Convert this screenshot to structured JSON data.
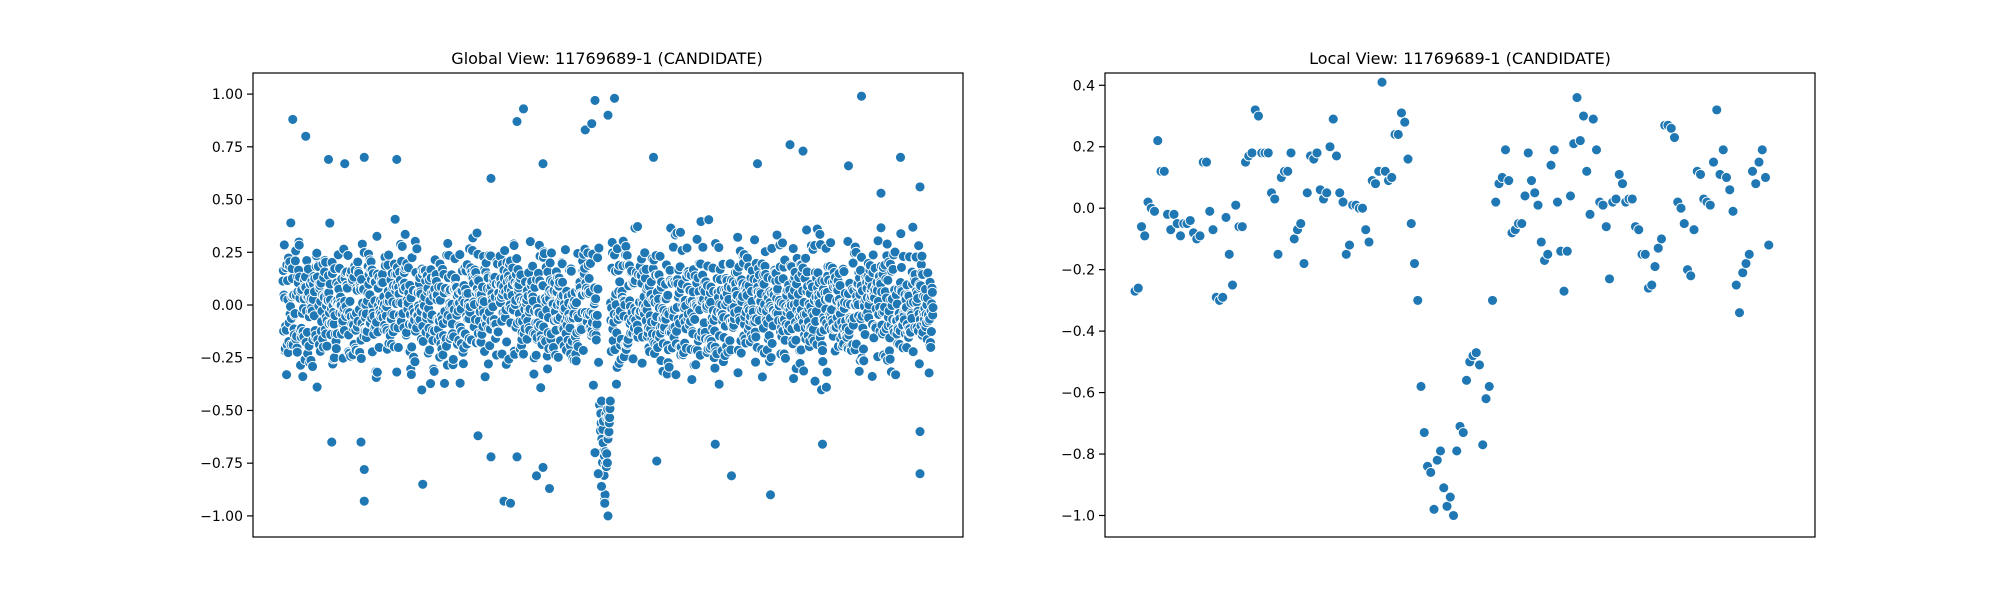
{
  "colors": {
    "marker": "#1f77b4",
    "marker_edge": "#ffffff",
    "frame": "#000000",
    "background": "#ffffff"
  },
  "chart_data": [
    {
      "type": "scatter",
      "title": "Global View: 11769689-1 (CANDIDATE)",
      "xlabel": "",
      "ylabel": "",
      "grid": false,
      "x_ticks_visible": false,
      "xlim": [
        0,
        2000
      ],
      "ylim": [
        -1.1,
        1.1
      ],
      "yticks": [
        -1.0,
        -0.75,
        -0.5,
        -0.25,
        0.0,
        0.25,
        0.5,
        0.75,
        1.0
      ],
      "ytick_labels": [
        "−1.00",
        "−0.75",
        "−0.50",
        "−0.25",
        "0.00",
        "0.25",
        "0.50",
        "0.75",
        "1.00"
      ],
      "n_points": 2001,
      "band": {
        "low": -0.38,
        "high": 0.38
      },
      "outliers": [
        [
          30,
          0.88
        ],
        [
          70,
          0.8
        ],
        [
          140,
          0.69
        ],
        [
          190,
          0.67
        ],
        [
          250,
          0.7
        ],
        [
          350,
          0.69
        ],
        [
          640,
          0.6
        ],
        [
          720,
          0.87
        ],
        [
          740,
          0.93
        ],
        [
          800,
          0.67
        ],
        [
          930,
          0.83
        ],
        [
          950,
          0.86
        ],
        [
          960,
          0.97
        ],
        [
          1000,
          0.9
        ],
        [
          1020,
          0.98
        ],
        [
          1140,
          0.7
        ],
        [
          1460,
          0.67
        ],
        [
          1560,
          0.76
        ],
        [
          1600,
          0.73
        ],
        [
          1740,
          0.66
        ],
        [
          1780,
          0.99
        ],
        [
          1840,
          0.53
        ],
        [
          1900,
          0.7
        ],
        [
          1960,
          0.56
        ],
        [
          150,
          -0.65
        ],
        [
          240,
          -0.65
        ],
        [
          250,
          -0.78
        ],
        [
          250,
          -0.93
        ],
        [
          430,
          -0.85
        ],
        [
          600,
          -0.62
        ],
        [
          640,
          -0.72
        ],
        [
          680,
          -0.93
        ],
        [
          700,
          -0.94
        ],
        [
          720,
          -0.72
        ],
        [
          780,
          -0.81
        ],
        [
          800,
          -0.77
        ],
        [
          820,
          -0.87
        ],
        [
          960,
          -0.7
        ],
        [
          970,
          -0.8
        ],
        [
          980,
          -0.86
        ],
        [
          990,
          -0.94
        ],
        [
          1000,
          -1.0
        ],
        [
          1150,
          -0.74
        ],
        [
          1330,
          -0.66
        ],
        [
          1380,
          -0.81
        ],
        [
          1500,
          -0.9
        ],
        [
          1660,
          -0.66
        ],
        [
          1960,
          -0.8
        ],
        [
          1960,
          -0.6
        ]
      ],
      "dip": {
        "center": 990,
        "width": 18,
        "min": -1.0
      }
    },
    {
      "type": "scatter",
      "title": "Local View: 11769689-1 (CANDIDATE)",
      "xlabel": "",
      "ylabel": "",
      "grid": false,
      "x_ticks_visible": false,
      "xlim": [
        0,
        200
      ],
      "ylim": [
        -1.07,
        0.44
      ],
      "yticks": [
        -1.0,
        -0.8,
        -0.6,
        -0.4,
        -0.2,
        0.0,
        0.2,
        0.4
      ],
      "ytick_labels": [
        "−1.0",
        "−0.8",
        "−0.6",
        "−0.4",
        "−0.2",
        "0.0",
        "0.2",
        "0.4"
      ],
      "points": [
        [
          0,
          -0.27
        ],
        [
          1,
          -0.26
        ],
        [
          2,
          -0.06
        ],
        [
          3,
          -0.09
        ],
        [
          4,
          0.02
        ],
        [
          5,
          0.0
        ],
        [
          6,
          -0.01
        ],
        [
          7,
          0.22
        ],
        [
          8,
          0.12
        ],
        [
          9,
          0.12
        ],
        [
          10,
          -0.02
        ],
        [
          11,
          -0.07
        ],
        [
          12,
          -0.02
        ],
        [
          13,
          -0.05
        ],
        [
          14,
          -0.09
        ],
        [
          15,
          -0.05
        ],
        [
          16,
          -0.05
        ],
        [
          17,
          -0.04
        ],
        [
          18,
          -0.08
        ],
        [
          19,
          -0.1
        ],
        [
          20,
          -0.09
        ],
        [
          21,
          0.15
        ],
        [
          22,
          0.15
        ],
        [
          23,
          -0.01
        ],
        [
          24,
          -0.07
        ],
        [
          25,
          -0.29
        ],
        [
          26,
          -0.3
        ],
        [
          27,
          -0.29
        ],
        [
          28,
          -0.03
        ],
        [
          29,
          -0.15
        ],
        [
          30,
          -0.25
        ],
        [
          31,
          0.01
        ],
        [
          32,
          -0.06
        ],
        [
          33,
          -0.06
        ],
        [
          34,
          0.15
        ],
        [
          35,
          0.17
        ],
        [
          36,
          0.18
        ],
        [
          37,
          0.32
        ],
        [
          38,
          0.3
        ],
        [
          39,
          0.18
        ],
        [
          40,
          0.18
        ],
        [
          41,
          0.18
        ],
        [
          42,
          0.05
        ],
        [
          43,
          0.03
        ],
        [
          44,
          -0.15
        ],
        [
          45,
          0.1
        ],
        [
          46,
          0.12
        ],
        [
          47,
          0.12
        ],
        [
          48,
          0.18
        ],
        [
          49,
          -0.1
        ],
        [
          50,
          -0.07
        ],
        [
          51,
          -0.05
        ],
        [
          52,
          -0.18
        ],
        [
          53,
          0.05
        ],
        [
          54,
          0.17
        ],
        [
          55,
          0.16
        ],
        [
          56,
          0.18
        ],
        [
          57,
          0.06
        ],
        [
          58,
          0.03
        ],
        [
          59,
          0.05
        ],
        [
          60,
          0.2
        ],
        [
          61,
          0.29
        ],
        [
          62,
          0.17
        ],
        [
          63,
          0.05
        ],
        [
          64,
          0.02
        ],
        [
          65,
          -0.15
        ],
        [
          66,
          -0.12
        ],
        [
          67,
          0.01
        ],
        [
          68,
          0.01
        ],
        [
          69,
          0.0
        ],
        [
          70,
          0.0
        ],
        [
          71,
          -0.07
        ],
        [
          72,
          -0.11
        ],
        [
          73,
          0.09
        ],
        [
          74,
          0.08
        ],
        [
          75,
          0.12
        ],
        [
          76,
          0.41
        ],
        [
          77,
          0.12
        ],
        [
          78,
          0.09
        ],
        [
          79,
          0.1
        ],
        [
          80,
          0.24
        ],
        [
          81,
          0.24
        ],
        [
          82,
          0.31
        ],
        [
          83,
          0.28
        ],
        [
          84,
          0.16
        ],
        [
          85,
          -0.05
        ],
        [
          86,
          -0.18
        ],
        [
          87,
          -0.3
        ],
        [
          88,
          -0.58
        ],
        [
          89,
          -0.73
        ],
        [
          90,
          -0.84
        ],
        [
          91,
          -0.86
        ],
        [
          92,
          -0.98
        ],
        [
          93,
          -0.82
        ],
        [
          94,
          -0.79
        ],
        [
          95,
          -0.91
        ],
        [
          96,
          -0.97
        ],
        [
          97,
          -0.94
        ],
        [
          98,
          -1.0
        ],
        [
          99,
          -0.79
        ],
        [
          100,
          -0.71
        ],
        [
          101,
          -0.73
        ],
        [
          102,
          -0.56
        ],
        [
          103,
          -0.5
        ],
        [
          104,
          -0.48
        ],
        [
          105,
          -0.47
        ],
        [
          106,
          -0.51
        ],
        [
          107,
          -0.77
        ],
        [
          108,
          -0.62
        ],
        [
          109,
          -0.58
        ],
        [
          110,
          -0.3
        ],
        [
          111,
          0.02
        ],
        [
          112,
          0.08
        ],
        [
          113,
          0.1
        ],
        [
          114,
          0.19
        ],
        [
          115,
          0.09
        ],
        [
          116,
          -0.08
        ],
        [
          117,
          -0.07
        ],
        [
          118,
          -0.05
        ],
        [
          119,
          -0.05
        ],
        [
          120,
          0.04
        ],
        [
          121,
          0.18
        ],
        [
          122,
          0.09
        ],
        [
          123,
          0.05
        ],
        [
          124,
          0.01
        ],
        [
          125,
          -0.11
        ],
        [
          126,
          -0.17
        ],
        [
          127,
          -0.15
        ],
        [
          128,
          0.14
        ],
        [
          129,
          0.19
        ],
        [
          130,
          0.02
        ],
        [
          131,
          -0.14
        ],
        [
          132,
          -0.27
        ],
        [
          133,
          -0.14
        ],
        [
          134,
          0.04
        ],
        [
          135,
          0.21
        ],
        [
          136,
          0.36
        ],
        [
          137,
          0.22
        ],
        [
          138,
          0.3
        ],
        [
          139,
          0.12
        ],
        [
          140,
          -0.02
        ],
        [
          141,
          0.29
        ],
        [
          142,
          0.19
        ],
        [
          143,
          0.02
        ],
        [
          144,
          0.01
        ],
        [
          145,
          -0.06
        ],
        [
          146,
          -0.23
        ],
        [
          147,
          0.02
        ],
        [
          148,
          0.03
        ],
        [
          149,
          0.11
        ],
        [
          150,
          0.08
        ],
        [
          151,
          0.02
        ],
        [
          152,
          0.03
        ],
        [
          153,
          0.03
        ],
        [
          154,
          -0.06
        ],
        [
          155,
          -0.07
        ],
        [
          156,
          -0.15
        ],
        [
          157,
          -0.15
        ],
        [
          158,
          -0.26
        ],
        [
          159,
          -0.25
        ],
        [
          160,
          -0.19
        ],
        [
          161,
          -0.13
        ],
        [
          162,
          -0.1
        ],
        [
          163,
          0.27
        ],
        [
          164,
          0.27
        ],
        [
          165,
          0.26
        ],
        [
          166,
          0.23
        ],
        [
          167,
          0.02
        ],
        [
          168,
          0.0
        ],
        [
          169,
          -0.05
        ],
        [
          170,
          -0.2
        ],
        [
          171,
          -0.22
        ],
        [
          172,
          -0.07
        ],
        [
          173,
          0.12
        ],
        [
          174,
          0.11
        ],
        [
          175,
          0.03
        ],
        [
          176,
          0.02
        ],
        [
          177,
          0.01
        ],
        [
          178,
          0.15
        ],
        [
          179,
          0.32
        ],
        [
          180,
          0.11
        ],
        [
          181,
          0.19
        ],
        [
          182,
          0.1
        ],
        [
          183,
          0.06
        ],
        [
          184,
          -0.01
        ],
        [
          185,
          -0.25
        ],
        [
          186,
          -0.34
        ],
        [
          187,
          -0.21
        ],
        [
          188,
          -0.18
        ],
        [
          189,
          -0.15
        ],
        [
          190,
          0.12
        ],
        [
          191,
          0.08
        ],
        [
          192,
          0.15
        ],
        [
          193,
          0.19
        ],
        [
          194,
          0.1
        ],
        [
          195,
          -0.12
        ]
      ]
    }
  ]
}
